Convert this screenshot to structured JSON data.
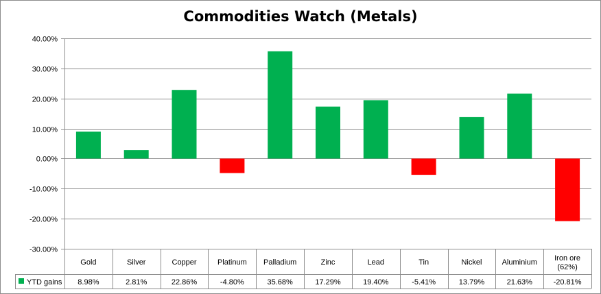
{
  "chart_data": {
    "type": "bar",
    "title": "Commodities Watch (Metals)",
    "xlabel": "",
    "ylabel": "",
    "categories": [
      "Gold",
      "Silver",
      "Copper",
      "Platinum",
      "Palladium",
      "Zinc",
      "Lead",
      "Tin",
      "Nickel",
      "Aluminium",
      "Iron ore (62%)"
    ],
    "series": [
      {
        "name": "YTD gains",
        "values": [
          8.98,
          2.81,
          22.86,
          -4.8,
          35.68,
          17.29,
          19.4,
          -5.41,
          13.79,
          21.63,
          -20.81
        ],
        "value_labels": [
          "8.98%",
          "2.81%",
          "22.86%",
          "-4.80%",
          "35.68%",
          "17.29%",
          "19.40%",
          "-5.41%",
          "13.79%",
          "21.63%",
          "-20.81%"
        ]
      }
    ],
    "ylim": [
      -30,
      40
    ],
    "yticks": [
      40,
      30,
      20,
      10,
      0,
      -10,
      -20,
      -30
    ],
    "ytick_labels": [
      "40.00%",
      "30.00%",
      "20.00%",
      "10.00%",
      "0.00%",
      "-10.00%",
      "-20.00%",
      "-30.00%"
    ],
    "grid": true,
    "legend": "data-table",
    "colors": {
      "positive": "#00b050",
      "negative": "#ff0000",
      "grid": "#8c8c8c"
    }
  }
}
